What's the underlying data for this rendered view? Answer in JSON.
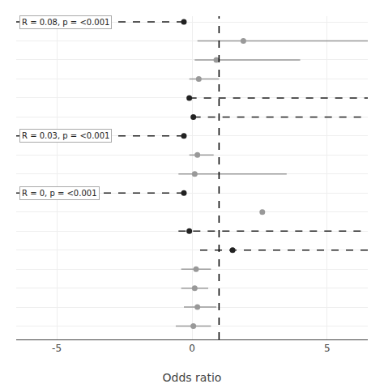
{
  "chart_data": {
    "type": "forest",
    "xlabel": "Odds ratio",
    "xlim": [
      -6.5,
      6.5
    ],
    "xticks": [
      -5,
      0,
      5
    ],
    "ylim": [
      -0.7,
      16.3
    ],
    "yticks": [
      0,
      1,
      2,
      3,
      4,
      5,
      6,
      7,
      8,
      9,
      10,
      11,
      12,
      13,
      14,
      15,
      16
    ],
    "tick_labels": "x",
    "grid": true,
    "ref_line": 1.0,
    "series": [
      {
        "color": "#222222",
        "line_style": "dashed",
        "y": [
          16,
          12,
          11,
          10,
          7,
          5,
          4
        ],
        "values": [
          -0.3,
          -0.1,
          0.05,
          -0.3,
          -0.3,
          -0.1,
          1.5
        ],
        "ci_low": [
          -6.5,
          -0.1,
          0.05,
          -6.5,
          -6.5,
          -0.5,
          0.3
        ],
        "ci_high": [
          -0.3,
          6.5,
          6.5,
          -0.3,
          -0.3,
          6.5,
          6.5
        ]
      },
      {
        "color": "#999999",
        "line_style": "solid",
        "y": [
          15,
          14,
          13,
          9,
          8,
          6,
          3,
          2,
          1,
          0
        ],
        "values": [
          1.9,
          0.9,
          0.25,
          0.2,
          0.1,
          2.6,
          0.15,
          0.1,
          0.2,
          0.05
        ],
        "ci_low": [
          0.2,
          0.1,
          -0.1,
          -0.1,
          -0.5,
          2.6,
          -0.4,
          -0.4,
          -0.3,
          -0.6
        ],
        "ci_high": [
          6.5,
          4.0,
          1.0,
          0.8,
          3.5,
          2.6,
          0.7,
          0.6,
          0.9,
          0.7
        ]
      }
    ],
    "annotations": [
      {
        "text": "R = 0.08, p = <0.001",
        "y": 16
      },
      {
        "text": "R = 0.03, p = <0.001",
        "y": 10
      },
      {
        "text": "R = 0, p = <0.001",
        "y": 7
      }
    ]
  }
}
